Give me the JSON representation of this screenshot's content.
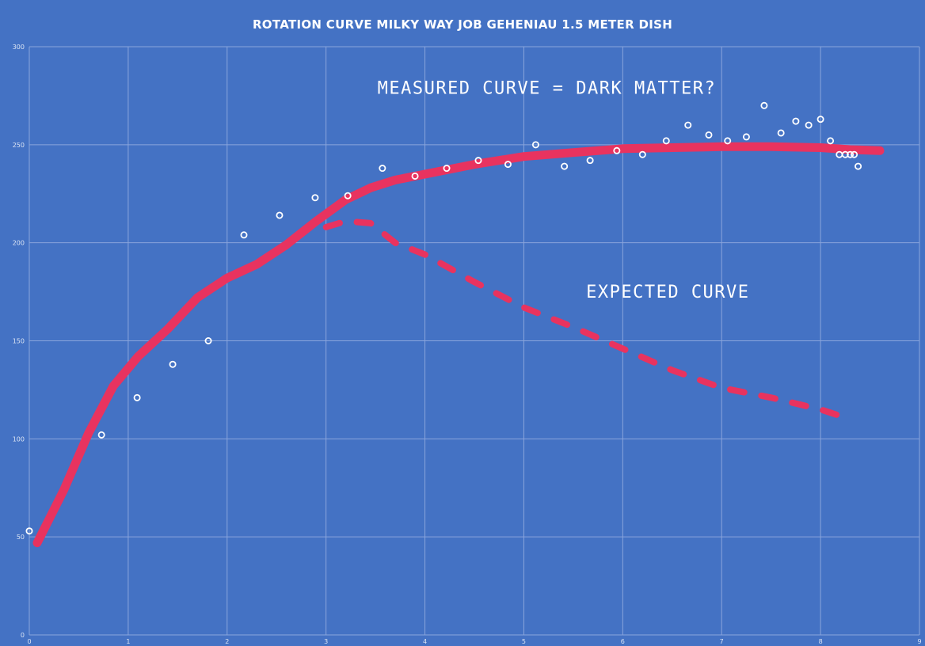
{
  "chart_data": {
    "type": "scatter",
    "title": "ROTATION CURVE MILKY WAY JOB GEHENIAU 1.5 METER DISH",
    "xlabel": "",
    "ylabel": "",
    "xlim": [
      0,
      9
    ],
    "ylim": [
      0,
      300
    ],
    "xticks": [
      "0",
      "1",
      "2",
      "3",
      "4",
      "5",
      "6",
      "7",
      "8",
      "9"
    ],
    "yticks": [
      "0",
      "50",
      "100",
      "150",
      "200",
      "250",
      "300"
    ],
    "grid": true,
    "colors": {
      "background": "#4472c4",
      "grid": "#8aa5dc",
      "points": "#ffffff",
      "curve": "#e8335f"
    },
    "annotations": [
      {
        "text": "MEASURED CURVE = DARK MATTER?",
        "x": 3.52,
        "y": 276
      },
      {
        "text": "EXPECTED CURVE",
        "x": 5.63,
        "y": 172
      }
    ],
    "points": [
      {
        "x": 0.0,
        "y": 53
      },
      {
        "x": 0.73,
        "y": 102
      },
      {
        "x": 1.09,
        "y": 121
      },
      {
        "x": 1.45,
        "y": 138
      },
      {
        "x": 1.81,
        "y": 150
      },
      {
        "x": 2.17,
        "y": 204
      },
      {
        "x": 2.53,
        "y": 214
      },
      {
        "x": 2.89,
        "y": 223
      },
      {
        "x": 3.22,
        "y": 224
      },
      {
        "x": 3.57,
        "y": 238
      },
      {
        "x": 3.9,
        "y": 234
      },
      {
        "x": 4.22,
        "y": 238
      },
      {
        "x": 4.54,
        "y": 242
      },
      {
        "x": 4.84,
        "y": 240
      },
      {
        "x": 5.12,
        "y": 250
      },
      {
        "x": 5.41,
        "y": 239
      },
      {
        "x": 5.67,
        "y": 242
      },
      {
        "x": 5.94,
        "y": 247
      },
      {
        "x": 6.2,
        "y": 245
      },
      {
        "x": 6.44,
        "y": 252
      },
      {
        "x": 6.66,
        "y": 260
      },
      {
        "x": 6.87,
        "y": 255
      },
      {
        "x": 7.06,
        "y": 252
      },
      {
        "x": 7.25,
        "y": 254
      },
      {
        "x": 7.43,
        "y": 270
      },
      {
        "x": 7.6,
        "y": 256
      },
      {
        "x": 7.75,
        "y": 262
      },
      {
        "x": 7.88,
        "y": 260
      },
      {
        "x": 8.0,
        "y": 263
      },
      {
        "x": 8.1,
        "y": 252
      },
      {
        "x": 8.19,
        "y": 245
      },
      {
        "x": 8.25,
        "y": 245
      },
      {
        "x": 8.3,
        "y": 245
      },
      {
        "x": 8.34,
        "y": 245
      },
      {
        "x": 8.38,
        "y": 239
      }
    ],
    "series": [
      {
        "style": "solid",
        "x": [
          0.08,
          0.35,
          0.6,
          0.85,
          1.1,
          1.4,
          1.7,
          2.0,
          2.3,
          2.6,
          2.9,
          3.2,
          3.45,
          3.7,
          4.0,
          4.5,
          5.0,
          5.5,
          6.0,
          6.5,
          7.0,
          7.5,
          8.0,
          8.3,
          8.6
        ],
        "y": [
          47,
          74,
          103,
          127,
          142,
          156,
          172,
          182,
          189,
          199,
          211,
          222,
          228,
          232,
          235,
          240,
          244,
          246,
          248,
          248.5,
          249,
          249,
          248.5,
          247.5,
          247
        ]
      },
      {
        "style": "dashed",
        "x": [
          3.0,
          3.2,
          3.45,
          3.7,
          4.0,
          4.5,
          5.0,
          5.5,
          6.0,
          6.5,
          7.0,
          7.5,
          8.0,
          8.3
        ],
        "y": [
          208,
          211,
          210,
          200,
          194,
          180,
          167,
          157,
          146,
          135,
          126,
          121,
          115,
          110
        ]
      }
    ]
  }
}
